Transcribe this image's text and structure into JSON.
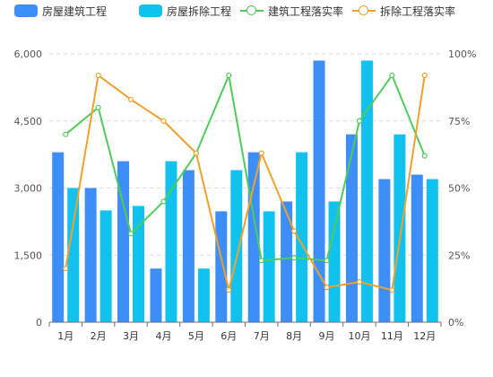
{
  "legend": {
    "items": [
      {
        "label": "房屋建筑工程",
        "kind": "bar",
        "color": "#3d8ef8"
      },
      {
        "label": "房屋拆除工程",
        "kind": "bar",
        "color": "#11c2ee"
      },
      {
        "label": "建筑工程落实率",
        "kind": "line",
        "color": "#4fcc5b"
      },
      {
        "label": "拆除工程落实率",
        "kind": "line",
        "color": "#f0a12c"
      }
    ]
  },
  "chart_data": {
    "type": "bar",
    "categories": [
      "1月",
      "2月",
      "3月",
      "4月",
      "5月",
      "6月",
      "7月",
      "8月",
      "9月",
      "10月",
      "11月",
      "12月"
    ],
    "series": [
      {
        "name": "房屋建筑工程",
        "type": "bar",
        "axis": "left",
        "color": "#3d8ef8",
        "values": [
          3800,
          3000,
          3600,
          1200,
          3400,
          2480,
          3800,
          2700,
          5850,
          4200,
          3200,
          3300
        ]
      },
      {
        "name": "房屋拆除工程",
        "type": "bar",
        "axis": "left",
        "color": "#11c2ee",
        "values": [
          3000,
          2500,
          2600,
          3600,
          1200,
          3400,
          2480,
          3800,
          2700,
          5850,
          4200,
          3200
        ]
      },
      {
        "name": "建筑工程落实率",
        "type": "line",
        "axis": "right",
        "unit": "%",
        "color": "#4fcc5b",
        "values": [
          70,
          80,
          33,
          45,
          63,
          92,
          23,
          24,
          23,
          75,
          92,
          62
        ]
      },
      {
        "name": "拆除工程落实率",
        "type": "line",
        "axis": "right",
        "unit": "%",
        "color": "#f0a12c",
        "values": [
          20,
          92,
          83,
          75,
          63,
          12,
          63,
          34,
          13,
          15,
          12,
          92
        ]
      }
    ],
    "y_left": {
      "min": 0,
      "max": 6000,
      "ticks": [
        0,
        1500,
        3000,
        4500,
        6000
      ],
      "tick_labels": [
        "0",
        "1,500",
        "3,000",
        "4,500",
        "6,000"
      ]
    },
    "y_right": {
      "min": 0,
      "max": 100,
      "ticks": [
        0,
        25,
        50,
        75,
        100
      ],
      "tick_labels": [
        "0%",
        "25%",
        "50%",
        "75%",
        "100%"
      ]
    },
    "grid": true,
    "legend_position": "top"
  }
}
